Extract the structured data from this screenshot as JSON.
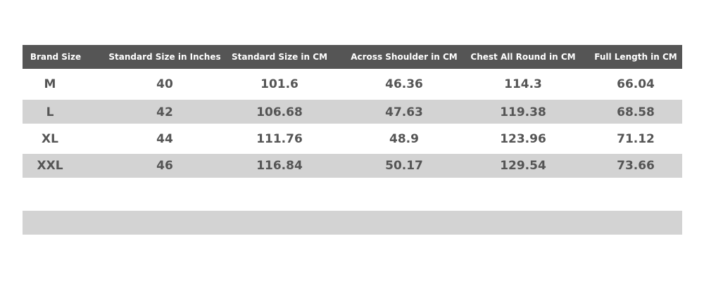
{
  "table": {
    "header": [
      "Brand Size",
      "Standard Size in Inches",
      "Standard Size in CM",
      "Across Shoulder in CM",
      "Chest All Round in CM",
      "Full Length in CM"
    ],
    "rows": [
      [
        "M",
        "40",
        "101.6",
        "46.36",
        "114.3",
        "66.04"
      ],
      [
        "L",
        "42",
        "106.68",
        "47.63",
        "119.38",
        "68.58"
      ],
      [
        "XL",
        "44",
        "111.76",
        "48.9",
        "123.96",
        "71.12"
      ],
      [
        "XXL",
        "46",
        "116.84",
        "50.17",
        "129.54",
        "73.66"
      ]
    ]
  }
}
